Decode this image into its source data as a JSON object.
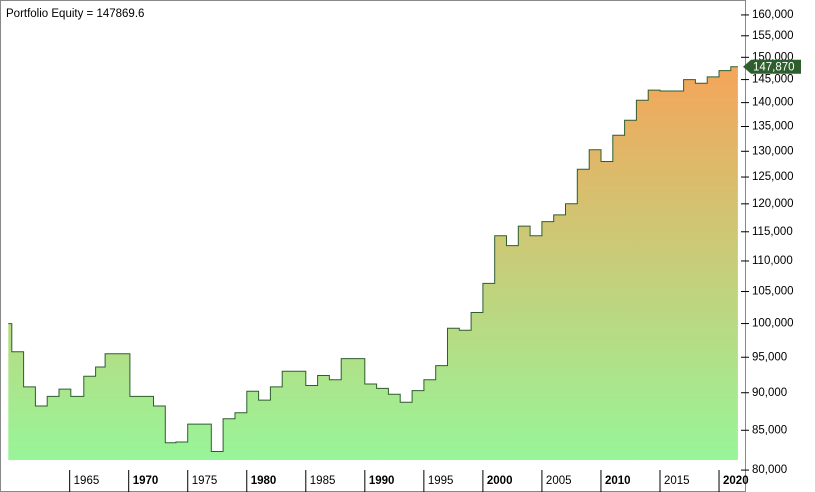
{
  "chart_data": {
    "type": "step-area",
    "title": "Portfolio Equity = 147869.6",
    "x": [
      1959.8,
      1960.1,
      1961.1,
      1962.1,
      1963.1,
      1964.1,
      1965.1,
      1966.2,
      1967.2,
      1968.0,
      1970.1,
      1972.1,
      1973.1,
      1974.0,
      1975.0,
      1977.0,
      1978.0,
      1979.0,
      1980.0,
      1981.0,
      1982.0,
      1983.0,
      1985.0,
      1986.0,
      1987.0,
      1988.0,
      1990.0,
      1991.0,
      1992.0,
      1993.0,
      1994.0,
      1995.0,
      1996.0,
      1997.0,
      1998.0,
      1999.0,
      2000.0,
      2001.0,
      2002.0,
      2003.0,
      2004.0,
      2005.0,
      2006.0,
      2007.0,
      2008.0,
      2009.0,
      2010.0,
      2011.0,
      2012.0,
      2013.0,
      2014.0,
      2015.0,
      2017.0,
      2018.0,
      2019.0,
      2020.0,
      2021.0
    ],
    "series": [
      {
        "name": "Portfolio Equity",
        "color": "#2e5e2e",
        "values": [
          100000,
          95800,
          90800,
          88200,
          89500,
          90500,
          89500,
          92300,
          93600,
          95500,
          89500,
          88200,
          83400,
          83500,
          85800,
          82300,
          86500,
          87300,
          90200,
          89000,
          90800,
          93000,
          91000,
          92400,
          91800,
          94800,
          91200,
          90600,
          89800,
          88700,
          90300,
          91800,
          93800,
          99300,
          99000,
          101700,
          106300,
          114300,
          112600,
          116000,
          114300,
          116800,
          118000,
          120000,
          126500,
          130300,
          128000,
          133200,
          136300,
          140500,
          142700,
          142500,
          145000,
          144200,
          145600,
          147000,
          147870
        ]
      }
    ],
    "last_value_label": "147,870",
    "fill_colors": [
      "#98f598",
      "#f5a55a"
    ],
    "log_scale": true,
    "xlim": [
      1959.1,
      2022.2
    ],
    "xticks": [
      1965,
      1970,
      1975,
      1980,
      1985,
      1990,
      1995,
      2000,
      2005,
      2010,
      2015,
      2020
    ],
    "ylim": [
      78800,
      161700
    ],
    "yticks": [
      {
        "value": 80000,
        "label": "80,000"
      },
      {
        "value": 85000,
        "label": "85,000"
      },
      {
        "value": 90000,
        "label": "90,000"
      },
      {
        "value": 95000,
        "label": "95,000"
      },
      {
        "value": 100000,
        "label": "100,000"
      },
      {
        "value": 105000,
        "label": "105,000"
      },
      {
        "value": 110000,
        "label": "110,000"
      },
      {
        "value": 115000,
        "label": "115,000"
      },
      {
        "value": 120000,
        "label": "120,000"
      },
      {
        "value": 125000,
        "label": "125,000"
      },
      {
        "value": 130000,
        "label": "130,000"
      },
      {
        "value": 135000,
        "label": "135,000"
      },
      {
        "value": 140000,
        "label": "140,000"
      },
      {
        "value": 145000,
        "label": "145,000"
      },
      {
        "value": 150000,
        "label": "150,000"
      },
      {
        "value": 155000,
        "label": "155,000"
      },
      {
        "value": 160000,
        "label": "160,000"
      }
    ]
  }
}
